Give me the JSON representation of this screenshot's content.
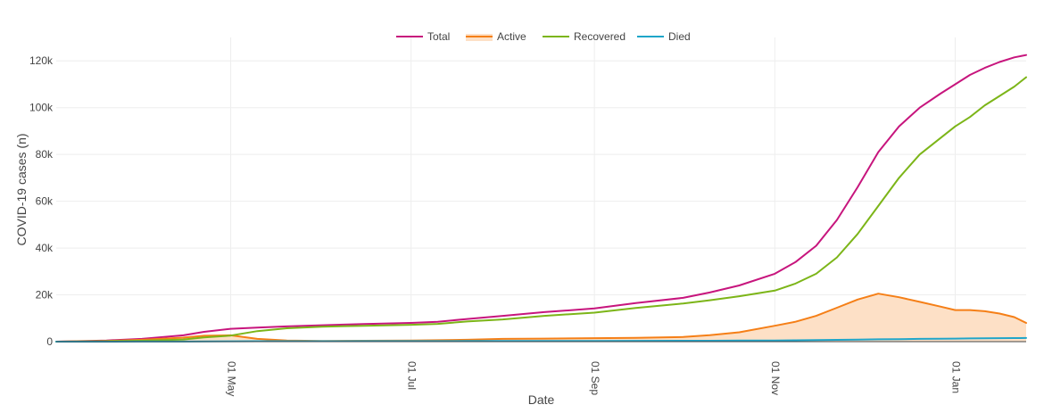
{
  "chart_data": {
    "type": "line",
    "title": "",
    "xlabel": "Date",
    "ylabel": "COVID-19 cases (n)",
    "x_range": [
      "2020-03-03",
      "2021-01-25"
    ],
    "ylim": [
      0,
      130000
    ],
    "y_ticks": [
      {
        "value": 0,
        "label": "0"
      },
      {
        "value": 20000,
        "label": "20k"
      },
      {
        "value": 40000,
        "label": "40k"
      },
      {
        "value": 60000,
        "label": "60k"
      },
      {
        "value": 80000,
        "label": "80k"
      },
      {
        "value": 100000,
        "label": "100k"
      },
      {
        "value": 120000,
        "label": "120k"
      }
    ],
    "x_ticks": [
      {
        "date": "2020-05-01",
        "label": "01 May"
      },
      {
        "date": "2020-07-01",
        "label": "01 Jul"
      },
      {
        "date": "2020-09-01",
        "label": "01 Sep"
      },
      {
        "date": "2020-11-01",
        "label": "01 Nov"
      },
      {
        "date": "2021-01-01",
        "label": "01 Jan"
      }
    ],
    "grid": true,
    "legend_position": "top-center",
    "x": [
      "2020-03-03",
      "2020-03-20",
      "2020-04-01",
      "2020-04-15",
      "2020-04-22",
      "2020-05-01",
      "2020-05-10",
      "2020-05-20",
      "2020-06-01",
      "2020-06-15",
      "2020-07-01",
      "2020-07-10",
      "2020-07-20",
      "2020-08-01",
      "2020-08-15",
      "2020-09-01",
      "2020-09-15",
      "2020-10-01",
      "2020-10-10",
      "2020-10-20",
      "2020-11-01",
      "2020-11-08",
      "2020-11-15",
      "2020-11-22",
      "2020-11-29",
      "2020-12-06",
      "2020-12-13",
      "2020-12-20",
      "2020-12-27",
      "2021-01-01",
      "2021-01-06",
      "2021-01-11",
      "2021-01-16",
      "2021-01-21",
      "2021-01-25"
    ],
    "series": [
      {
        "name": "Total",
        "color": "#c7157d",
        "fill": false,
        "values": [
          0,
          500,
          1200,
          2700,
          4200,
          5500,
          6000,
          6500,
          7000,
          7500,
          8000,
          8500,
          9700,
          11000,
          12600,
          14200,
          16500,
          18700,
          21000,
          24000,
          29000,
          34000,
          41000,
          52000,
          66000,
          81000,
          92000,
          100000,
          106000,
          110000,
          114000,
          117000,
          119500,
          121500,
          122500
        ]
      },
      {
        "name": "Active",
        "color": "#f57f17",
        "fill": true,
        "fill_color": "#fde0c6",
        "values": [
          0,
          300,
          800,
          1700,
          2500,
          2700,
          1200,
          500,
          300,
          400,
          500,
          600,
          800,
          1200,
          1300,
          1500,
          1600,
          2000,
          2800,
          4000,
          6800,
          8500,
          11000,
          14500,
          18000,
          20500,
          19000,
          17000,
          15000,
          13500,
          13500,
          13000,
          12000,
          10500,
          8000
        ]
      },
      {
        "name": "Recovered",
        "color": "#7cb518",
        "fill": false,
        "values": [
          0,
          200,
          400,
          900,
          1800,
          2600,
          4500,
          5700,
          6400,
          6800,
          7200,
          7600,
          8600,
          9500,
          11000,
          12400,
          14400,
          16300,
          17700,
          19400,
          21800,
          24800,
          29000,
          36000,
          46000,
          58000,
          70000,
          80000,
          87000,
          92000,
          96000,
          101000,
          105000,
          109000,
          113000
        ]
      },
      {
        "name": "Died",
        "color": "#1fa5c9",
        "fill": false,
        "values": [
          0,
          0,
          20,
          50,
          100,
          150,
          180,
          200,
          200,
          210,
          220,
          230,
          250,
          280,
          300,
          320,
          350,
          380,
          400,
          440,
          500,
          560,
          640,
          750,
          870,
          980,
          1080,
          1170,
          1250,
          1300,
          1360,
          1420,
          1480,
          1530,
          1550
        ]
      }
    ]
  }
}
